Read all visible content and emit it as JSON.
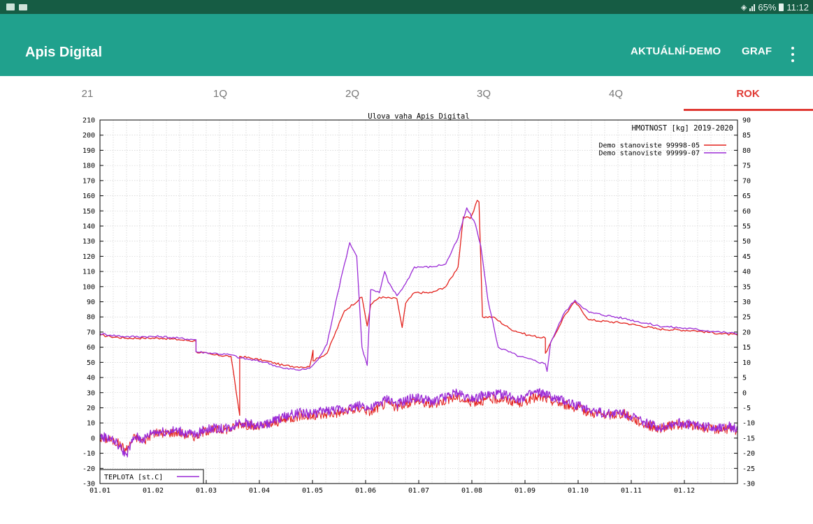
{
  "status_bar": {
    "battery": "65%",
    "time": "11:12"
  },
  "app_bar": {
    "title": "Apis Digital",
    "actions": [
      "AKTUÁLNÍ-DEMO",
      "GRAF"
    ],
    "more_icon": "more-vert-icon"
  },
  "tabs": {
    "items": [
      "21",
      "1Q",
      "2Q",
      "3Q",
      "4Q",
      "ROK"
    ],
    "active": "ROK"
  },
  "colors": {
    "status_bar": "#165c44",
    "app_bar": "#20a18d",
    "accent": "#e03a34",
    "series_05": "#e3201b",
    "series_07": "#9b2bd6"
  },
  "chart_data": {
    "type": "line",
    "title": "Ulova vaha Apis Digital",
    "inner_title": "HMOTNOST [kg] 2019-2020",
    "secondary_label": "TEPLOTA [st.C]",
    "x_ticks": [
      "01.01",
      "01.02",
      "01.03",
      "01.04",
      "01.05",
      "01.06",
      "01.07",
      "01.08",
      "01.09",
      "01.10",
      "01.11",
      "01.12"
    ],
    "y_left": {
      "min": -30,
      "max": 210,
      "step": 10
    },
    "y_right": {
      "min": -30,
      "max": 90,
      "step": 5
    },
    "grid": true,
    "legend_position": "top-right",
    "series": [
      {
        "name": "Demo stanoviste 99998-05",
        "color": "#e3201b",
        "weight": [
          [
            0,
            68
          ],
          [
            6,
            67
          ],
          [
            15,
            66
          ],
          [
            25,
            66
          ],
          [
            35,
            66
          ],
          [
            45,
            65
          ],
          [
            55,
            64
          ],
          [
            55,
            57
          ],
          [
            65,
            55
          ],
          [
            75,
            54
          ],
          [
            80,
            15
          ],
          [
            80,
            54
          ],
          [
            95,
            51
          ],
          [
            105,
            48
          ],
          [
            115,
            47
          ],
          [
            120,
            47
          ],
          [
            122,
            58
          ],
          [
            122,
            51
          ],
          [
            130,
            56
          ],
          [
            140,
            84
          ],
          [
            150,
            93
          ],
          [
            153,
            74
          ],
          [
            155,
            88
          ],
          [
            160,
            93
          ],
          [
            170,
            92
          ],
          [
            173,
            73
          ],
          [
            175,
            89
          ],
          [
            180,
            96
          ],
          [
            190,
            96
          ],
          [
            198,
            100
          ],
          [
            205,
            113
          ],
          [
            208,
            146
          ],
          [
            212,
            145
          ],
          [
            214,
            150
          ],
          [
            216,
            157
          ],
          [
            217,
            156
          ],
          [
            219,
            80
          ],
          [
            225,
            80
          ],
          [
            235,
            72
          ],
          [
            245,
            68
          ],
          [
            255,
            66
          ],
          [
            255,
            56
          ],
          [
            260,
            67
          ],
          [
            266,
            81
          ],
          [
            272,
            90
          ],
          [
            280,
            78
          ],
          [
            300,
            76
          ],
          [
            320,
            72
          ],
          [
            340,
            71
          ],
          [
            355,
            69
          ],
          [
            365,
            68
          ]
        ],
        "temperature": [
          [
            0,
            0
          ],
          [
            6,
            -1
          ],
          [
            10,
            -3
          ],
          [
            15,
            -8
          ],
          [
            20,
            1
          ],
          [
            25,
            -2
          ],
          [
            30,
            3
          ],
          [
            45,
            4
          ],
          [
            50,
            2
          ],
          [
            55,
            1
          ],
          [
            60,
            5
          ],
          [
            75,
            6
          ],
          [
            80,
            10
          ],
          [
            90,
            7
          ],
          [
            95,
            8
          ],
          [
            105,
            12
          ],
          [
            115,
            15
          ],
          [
            120,
            14
          ],
          [
            130,
            16
          ],
          [
            140,
            17
          ],
          [
            150,
            20
          ],
          [
            155,
            17
          ],
          [
            160,
            21
          ],
          [
            165,
            23
          ],
          [
            170,
            20
          ],
          [
            180,
            25
          ],
          [
            190,
            22
          ],
          [
            200,
            26
          ],
          [
            205,
            27
          ],
          [
            210,
            24
          ],
          [
            215,
            24
          ],
          [
            220,
            25
          ],
          [
            230,
            26
          ],
          [
            240,
            23
          ],
          [
            250,
            27
          ],
          [
            255,
            26
          ],
          [
            260,
            24
          ],
          [
            270,
            21
          ],
          [
            280,
            17
          ],
          [
            290,
            15
          ],
          [
            300,
            16
          ],
          [
            310,
            10
          ],
          [
            320,
            6
          ],
          [
            330,
            9
          ],
          [
            340,
            8
          ],
          [
            350,
            6
          ],
          [
            360,
            6
          ],
          [
            365,
            4
          ]
        ]
      },
      {
        "name": "Demo stanoviste 99999-07",
        "color": "#9b2bd6",
        "weight": [
          [
            0,
            69
          ],
          [
            6,
            68
          ],
          [
            15,
            67
          ],
          [
            25,
            67
          ],
          [
            35,
            67
          ],
          [
            45,
            66
          ],
          [
            55,
            65
          ],
          [
            55,
            57
          ],
          [
            65,
            56
          ],
          [
            75,
            55
          ],
          [
            80,
            53
          ],
          [
            95,
            50
          ],
          [
            105,
            46
          ],
          [
            115,
            45
          ],
          [
            120,
            46
          ],
          [
            125,
            52
          ],
          [
            130,
            62
          ],
          [
            135,
            90
          ],
          [
            140,
            115
          ],
          [
            143,
            129
          ],
          [
            147,
            120
          ],
          [
            150,
            60
          ],
          [
            153,
            48
          ],
          [
            155,
            98
          ],
          [
            160,
            96
          ],
          [
            163,
            110
          ],
          [
            165,
            103
          ],
          [
            170,
            94
          ],
          [
            175,
            102
          ],
          [
            180,
            113
          ],
          [
            190,
            113
          ],
          [
            198,
            115
          ],
          [
            205,
            132
          ],
          [
            210,
            152
          ],
          [
            215,
            141
          ],
          [
            218,
            127
          ],
          [
            222,
            92
          ],
          [
            228,
            60
          ],
          [
            240,
            54
          ],
          [
            255,
            49
          ],
          [
            256,
            44
          ],
          [
            258,
            63
          ],
          [
            266,
            83
          ],
          [
            272,
            91
          ],
          [
            280,
            83
          ],
          [
            300,
            79
          ],
          [
            320,
            74
          ],
          [
            340,
            72
          ],
          [
            355,
            70
          ],
          [
            365,
            69
          ]
        ],
        "temperature": [
          [
            0,
            1
          ],
          [
            6,
            0
          ],
          [
            10,
            -4
          ],
          [
            15,
            -11
          ],
          [
            20,
            1
          ],
          [
            25,
            -1
          ],
          [
            30,
            4
          ],
          [
            45,
            5
          ],
          [
            50,
            3
          ],
          [
            55,
            2
          ],
          [
            60,
            6
          ],
          [
            75,
            7
          ],
          [
            80,
            11
          ],
          [
            90,
            8
          ],
          [
            95,
            9
          ],
          [
            105,
            14
          ],
          [
            115,
            17
          ],
          [
            120,
            16
          ],
          [
            130,
            18
          ],
          [
            140,
            19
          ],
          [
            150,
            22
          ],
          [
            155,
            19
          ],
          [
            160,
            23
          ],
          [
            165,
            26
          ],
          [
            170,
            22
          ],
          [
            180,
            27
          ],
          [
            190,
            24
          ],
          [
            200,
            28
          ],
          [
            205,
            30
          ],
          [
            210,
            27
          ],
          [
            215,
            27
          ],
          [
            220,
            28
          ],
          [
            230,
            29
          ],
          [
            240,
            26
          ],
          [
            250,
            30
          ],
          [
            255,
            29
          ],
          [
            260,
            26
          ],
          [
            270,
            23
          ],
          [
            280,
            19
          ],
          [
            290,
            16
          ],
          [
            300,
            17
          ],
          [
            310,
            11
          ],
          [
            320,
            7
          ],
          [
            330,
            10
          ],
          [
            340,
            9
          ],
          [
            350,
            7
          ],
          [
            360,
            8
          ],
          [
            365,
            5
          ]
        ]
      }
    ]
  }
}
